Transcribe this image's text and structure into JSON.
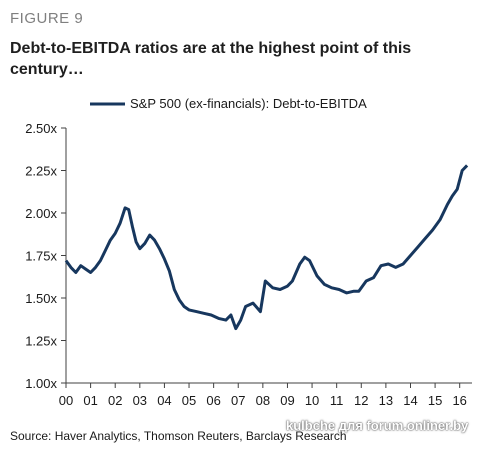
{
  "figure_label": "FIGURE 9",
  "title": "Debt-to-EBITDA ratios are at the highest point of this century…",
  "source": "Source: Haver Analytics, Thomson Reuters, Barclays Research",
  "watermark": "kulbche для forum.onliner.by",
  "colors": {
    "series": "#17375e",
    "axis": "#404040",
    "text": "#1a1a1a"
  },
  "chart_data": {
    "type": "line",
    "title": "Debt-to-EBITDA ratios are at the highest point of this century…",
    "xlabel": "",
    "ylabel": "",
    "xlim": [
      2000,
      2016.5
    ],
    "ylim": [
      1.0,
      2.5
    ],
    "grid": false,
    "legend": "top-left",
    "x_tick_labels": [
      "00",
      "01",
      "02",
      "03",
      "04",
      "05",
      "06",
      "07",
      "08",
      "09",
      "10",
      "11",
      "12",
      "13",
      "14",
      "15",
      "16"
    ],
    "x_tick_values": [
      2000,
      2001,
      2002,
      2003,
      2004,
      2005,
      2006,
      2007,
      2008,
      2009,
      2010,
      2011,
      2012,
      2013,
      2014,
      2015,
      2016
    ],
    "y_tick_labels": [
      "1.00x",
      "1.25x",
      "1.50x",
      "1.75x",
      "2.00x",
      "2.25x",
      "2.50x"
    ],
    "y_tick_values": [
      1.0,
      1.25,
      1.5,
      1.75,
      2.0,
      2.25,
      2.5
    ],
    "series": [
      {
        "name": "S&P 500 (ex-financials): Debt-to-EBITDA",
        "x": [
          2000.0,
          2000.2,
          2000.4,
          2000.6,
          2000.8,
          2001.0,
          2001.2,
          2001.4,
          2001.6,
          2001.8,
          2002.0,
          2002.2,
          2002.4,
          2002.55,
          2002.7,
          2002.85,
          2003.0,
          2003.2,
          2003.4,
          2003.6,
          2003.8,
          2004.0,
          2004.2,
          2004.4,
          2004.6,
          2004.8,
          2005.0,
          2005.3,
          2005.6,
          2005.9,
          2006.2,
          2006.5,
          2006.7,
          2006.9,
          2007.1,
          2007.3,
          2007.6,
          2007.9,
          2008.1,
          2008.4,
          2008.7,
          2009.0,
          2009.2,
          2009.5,
          2009.7,
          2009.9,
          2010.2,
          2010.5,
          2010.8,
          2011.1,
          2011.4,
          2011.7,
          2011.9,
          2012.2,
          2012.5,
          2012.8,
          2013.1,
          2013.4,
          2013.7,
          2014.0,
          2014.3,
          2014.6,
          2014.9,
          2015.2,
          2015.5,
          2015.7,
          2015.9,
          2016.1,
          2016.3
        ],
        "values": [
          1.72,
          1.68,
          1.65,
          1.69,
          1.67,
          1.65,
          1.68,
          1.72,
          1.78,
          1.84,
          1.88,
          1.94,
          2.03,
          2.02,
          1.92,
          1.83,
          1.79,
          1.82,
          1.87,
          1.84,
          1.79,
          1.73,
          1.66,
          1.55,
          1.49,
          1.45,
          1.43,
          1.42,
          1.41,
          1.4,
          1.38,
          1.37,
          1.4,
          1.32,
          1.37,
          1.45,
          1.47,
          1.42,
          1.6,
          1.56,
          1.55,
          1.57,
          1.6,
          1.7,
          1.74,
          1.72,
          1.63,
          1.58,
          1.56,
          1.55,
          1.53,
          1.54,
          1.54,
          1.6,
          1.62,
          1.69,
          1.7,
          1.68,
          1.7,
          1.75,
          1.8,
          1.85,
          1.9,
          1.96,
          2.05,
          2.1,
          2.14,
          2.25,
          2.28
        ]
      }
    ]
  }
}
